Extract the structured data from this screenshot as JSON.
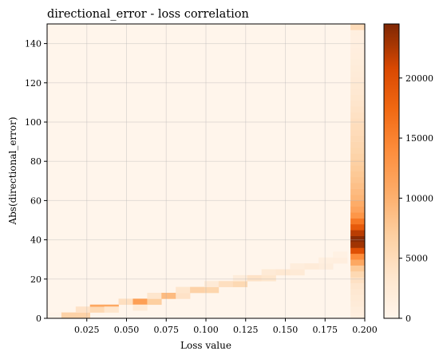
{
  "chart_data": {
    "type": "heatmap",
    "title": "directional_error - loss correlation",
    "xlabel": "Loss value",
    "ylabel": "Abs(directional_error)",
    "xlim": [
      0.0,
      0.2
    ],
    "ylim": [
      0,
      150
    ],
    "x_ticks": [
      "0.025",
      "0.050",
      "0.075",
      "0.100",
      "0.125",
      "0.150",
      "0.175",
      "0.200"
    ],
    "y_ticks": [
      "0",
      "20",
      "40",
      "60",
      "80",
      "100",
      "120",
      "140"
    ],
    "colorbar": {
      "colormap": "Oranges",
      "range": [
        0,
        24500
      ],
      "ticks": [
        "0",
        "5000",
        "10000",
        "15000",
        "20000"
      ]
    },
    "grid": true,
    "background_color": "#fff5eb",
    "bins": [
      {
        "x": [
          0.0,
          0.009
        ],
        "y": [
          0,
          3
        ],
        "count": 400
      },
      {
        "x": [
          0.009,
          0.018
        ],
        "y": [
          0,
          3
        ],
        "count": 6500
      },
      {
        "x": [
          0.018,
          0.027
        ],
        "y": [
          0,
          3
        ],
        "count": 6500
      },
      {
        "x": [
          0.018,
          0.027
        ],
        "y": [
          3,
          6
        ],
        "count": 4000
      },
      {
        "x": [
          0.027,
          0.036
        ],
        "y": [
          3,
          6
        ],
        "count": 5500
      },
      {
        "x": [
          0.027,
          0.036
        ],
        "y": [
          6,
          7
        ],
        "count": 11000
      },
      {
        "x": [
          0.036,
          0.045
        ],
        "y": [
          6,
          7
        ],
        "count": 11000
      },
      {
        "x": [
          0.036,
          0.045
        ],
        "y": [
          3,
          6
        ],
        "count": 3500
      },
      {
        "x": [
          0.045,
          0.054
        ],
        "y": [
          7,
          10
        ],
        "count": 4500
      },
      {
        "x": [
          0.054,
          0.063
        ],
        "y": [
          7,
          10
        ],
        "count": 12000
      },
      {
        "x": [
          0.054,
          0.063
        ],
        "y": [
          4,
          7
        ],
        "count": 2500
      },
      {
        "x": [
          0.063,
          0.072
        ],
        "y": [
          7,
          10
        ],
        "count": 7000
      },
      {
        "x": [
          0.063,
          0.072
        ],
        "y": [
          10,
          13
        ],
        "count": 3500
      },
      {
        "x": [
          0.072,
          0.081
        ],
        "y": [
          10,
          13
        ],
        "count": 9000
      },
      {
        "x": [
          0.081,
          0.09
        ],
        "y": [
          10,
          13
        ],
        "count": 4000
      },
      {
        "x": [
          0.081,
          0.09
        ],
        "y": [
          13,
          16
        ],
        "count": 3500
      },
      {
        "x": [
          0.09,
          0.099
        ],
        "y": [
          13,
          16
        ],
        "count": 6500
      },
      {
        "x": [
          0.099,
          0.108
        ],
        "y": [
          13,
          16
        ],
        "count": 6000
      },
      {
        "x": [
          0.099,
          0.108
        ],
        "y": [
          16,
          19
        ],
        "count": 2500
      },
      {
        "x": [
          0.108,
          0.117
        ],
        "y": [
          16,
          19
        ],
        "count": 4500
      },
      {
        "x": [
          0.117,
          0.126
        ],
        "y": [
          16,
          19
        ],
        "count": 5500
      },
      {
        "x": [
          0.117,
          0.126
        ],
        "y": [
          19,
          22
        ],
        "count": 2000
      },
      {
        "x": [
          0.126,
          0.135
        ],
        "y": [
          19,
          22
        ],
        "count": 4000
      },
      {
        "x": [
          0.135,
          0.144
        ],
        "y": [
          19,
          22
        ],
        "count": 3500
      },
      {
        "x": [
          0.135,
          0.144
        ],
        "y": [
          22,
          25
        ],
        "count": 2500
      },
      {
        "x": [
          0.144,
          0.153
        ],
        "y": [
          22,
          25
        ],
        "count": 3000
      },
      {
        "x": [
          0.153,
          0.162
        ],
        "y": [
          22,
          25
        ],
        "count": 2500
      },
      {
        "x": [
          0.153,
          0.162
        ],
        "y": [
          25,
          28
        ],
        "count": 1800
      },
      {
        "x": [
          0.162,
          0.171
        ],
        "y": [
          25,
          28
        ],
        "count": 2200
      },
      {
        "x": [
          0.171,
          0.18
        ],
        "y": [
          25,
          28
        ],
        "count": 1800
      },
      {
        "x": [
          0.171,
          0.18
        ],
        "y": [
          28,
          31
        ],
        "count": 1400
      },
      {
        "x": [
          0.18,
          0.189
        ],
        "y": [
          28,
          31
        ],
        "count": 1500
      },
      {
        "x": [
          0.18,
          0.189
        ],
        "y": [
          31,
          34
        ],
        "count": 1000
      },
      {
        "x": [
          0.191,
          0.2
        ],
        "y": [
          0,
          3
        ],
        "count": 1500
      },
      {
        "x": [
          0.191,
          0.2
        ],
        "y": [
          3,
          6
        ],
        "count": 1800
      },
      {
        "x": [
          0.191,
          0.2
        ],
        "y": [
          6,
          9
        ],
        "count": 2200
      },
      {
        "x": [
          0.191,
          0.2
        ],
        "y": [
          9,
          12
        ],
        "count": 2600
      },
      {
        "x": [
          0.191,
          0.2
        ],
        "y": [
          12,
          15
        ],
        "count": 3000
      },
      {
        "x": [
          0.191,
          0.2
        ],
        "y": [
          15,
          18
        ],
        "count": 3400
      },
      {
        "x": [
          0.191,
          0.2
        ],
        "y": [
          18,
          21
        ],
        "count": 4200
      },
      {
        "x": [
          0.191,
          0.2
        ],
        "y": [
          21,
          24
        ],
        "count": 5500
      },
      {
        "x": [
          0.191,
          0.2
        ],
        "y": [
          24,
          27
        ],
        "count": 7500
      },
      {
        "x": [
          0.191,
          0.2
        ],
        "y": [
          27,
          30
        ],
        "count": 11000
      },
      {
        "x": [
          0.191,
          0.2
        ],
        "y": [
          30,
          33
        ],
        "count": 14000
      },
      {
        "x": [
          0.191,
          0.2
        ],
        "y": [
          33,
          36
        ],
        "count": 20000
      },
      {
        "x": [
          0.191,
          0.2
        ],
        "y": [
          36,
          39
        ],
        "count": 23000
      },
      {
        "x": [
          0.191,
          0.2
        ],
        "y": [
          39,
          42
        ],
        "count": 24000
      },
      {
        "x": [
          0.191,
          0.2
        ],
        "y": [
          42,
          45
        ],
        "count": 22000
      },
      {
        "x": [
          0.191,
          0.2
        ],
        "y": [
          45,
          48
        ],
        "count": 19000
      },
      {
        "x": [
          0.191,
          0.2
        ],
        "y": [
          48,
          51
        ],
        "count": 16000
      },
      {
        "x": [
          0.191,
          0.2
        ],
        "y": [
          51,
          54
        ],
        "count": 13000
      },
      {
        "x": [
          0.191,
          0.2
        ],
        "y": [
          54,
          57
        ],
        "count": 11500
      },
      {
        "x": [
          0.191,
          0.2
        ],
        "y": [
          57,
          60
        ],
        "count": 10500
      },
      {
        "x": [
          0.191,
          0.2
        ],
        "y": [
          60,
          63
        ],
        "count": 9500
      },
      {
        "x": [
          0.191,
          0.2
        ],
        "y": [
          63,
          66
        ],
        "count": 9000
      },
      {
        "x": [
          0.191,
          0.2
        ],
        "y": [
          66,
          69
        ],
        "count": 8500
      },
      {
        "x": [
          0.191,
          0.2
        ],
        "y": [
          69,
          72
        ],
        "count": 8000
      },
      {
        "x": [
          0.191,
          0.2
        ],
        "y": [
          72,
          75
        ],
        "count": 7600
      },
      {
        "x": [
          0.191,
          0.2
        ],
        "y": [
          75,
          78
        ],
        "count": 7200
      },
      {
        "x": [
          0.191,
          0.2
        ],
        "y": [
          78,
          81
        ],
        "count": 6800
      },
      {
        "x": [
          0.191,
          0.2
        ],
        "y": [
          81,
          84
        ],
        "count": 6400
      },
      {
        "x": [
          0.191,
          0.2
        ],
        "y": [
          84,
          87
        ],
        "count": 6000
      },
      {
        "x": [
          0.191,
          0.2
        ],
        "y": [
          87,
          90
        ],
        "count": 5700
      },
      {
        "x": [
          0.191,
          0.2
        ],
        "y": [
          90,
          93
        ],
        "count": 5400
      },
      {
        "x": [
          0.191,
          0.2
        ],
        "y": [
          93,
          96
        ],
        "count": 5100
      },
      {
        "x": [
          0.191,
          0.2
        ],
        "y": [
          96,
          99
        ],
        "count": 4800
      },
      {
        "x": [
          0.191,
          0.2
        ],
        "y": [
          99,
          102
        ],
        "count": 4500
      },
      {
        "x": [
          0.191,
          0.2
        ],
        "y": [
          102,
          105
        ],
        "count": 4200
      },
      {
        "x": [
          0.191,
          0.2
        ],
        "y": [
          105,
          108
        ],
        "count": 3900
      },
      {
        "x": [
          0.191,
          0.2
        ],
        "y": [
          108,
          111
        ],
        "count": 3600
      },
      {
        "x": [
          0.191,
          0.2
        ],
        "y": [
          111,
          114
        ],
        "count": 3300
      },
      {
        "x": [
          0.191,
          0.2
        ],
        "y": [
          114,
          117
        ],
        "count": 3000
      },
      {
        "x": [
          0.191,
          0.2
        ],
        "y": [
          117,
          120
        ],
        "count": 2800
      },
      {
        "x": [
          0.191,
          0.2
        ],
        "y": [
          120,
          123
        ],
        "count": 2500
      },
      {
        "x": [
          0.191,
          0.2
        ],
        "y": [
          123,
          126
        ],
        "count": 2300
      },
      {
        "x": [
          0.191,
          0.2
        ],
        "y": [
          126,
          129
        ],
        "count": 2100
      },
      {
        "x": [
          0.191,
          0.2
        ],
        "y": [
          129,
          132
        ],
        "count": 1900
      },
      {
        "x": [
          0.191,
          0.2
        ],
        "y": [
          132,
          135
        ],
        "count": 1700
      },
      {
        "x": [
          0.191,
          0.2
        ],
        "y": [
          135,
          138
        ],
        "count": 1500
      },
      {
        "x": [
          0.191,
          0.2
        ],
        "y": [
          138,
          141
        ],
        "count": 1400
      },
      {
        "x": [
          0.191,
          0.2
        ],
        "y": [
          141,
          144
        ],
        "count": 1300
      },
      {
        "x": [
          0.191,
          0.2
        ],
        "y": [
          144,
          147
        ],
        "count": 1400
      },
      {
        "x": [
          0.191,
          0.2
        ],
        "y": [
          147,
          150
        ],
        "count": 5000
      }
    ]
  }
}
